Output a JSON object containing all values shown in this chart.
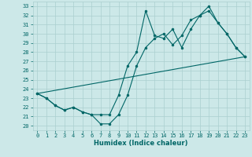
{
  "xlabel": "Humidex (Indice chaleur)",
  "bg_color": "#cce8e8",
  "line_color": "#006666",
  "grid_color": "#aacfcf",
  "xlim": [
    -0.5,
    23.5
  ],
  "ylim": [
    19.5,
    33.5
  ],
  "yticks": [
    20,
    21,
    22,
    23,
    24,
    25,
    26,
    27,
    28,
    29,
    30,
    31,
    32,
    33
  ],
  "xticks": [
    0,
    1,
    2,
    3,
    4,
    5,
    6,
    7,
    8,
    9,
    10,
    11,
    12,
    13,
    14,
    15,
    16,
    17,
    18,
    19,
    20,
    21,
    22,
    23
  ],
  "line1_x": [
    0,
    1,
    2,
    3,
    4,
    5,
    6,
    7,
    8,
    9,
    10,
    11,
    12,
    13,
    14,
    15,
    16,
    17,
    18,
    19,
    20,
    21,
    22,
    23
  ],
  "line1_y": [
    23.5,
    23.0,
    22.2,
    21.7,
    22.0,
    21.5,
    21.2,
    20.2,
    20.2,
    21.2,
    23.3,
    26.5,
    28.5,
    29.5,
    30.0,
    28.8,
    29.8,
    31.5,
    32.0,
    32.5,
    31.2,
    30.0,
    28.5,
    27.5
  ],
  "line2_x": [
    0,
    1,
    2,
    3,
    4,
    5,
    6,
    7,
    8,
    9,
    10,
    11,
    12,
    13,
    14,
    15,
    16,
    17,
    18,
    19,
    20,
    21,
    22,
    23
  ],
  "line2_y": [
    23.5,
    23.0,
    22.2,
    21.7,
    22.0,
    21.5,
    21.2,
    21.2,
    21.2,
    23.3,
    26.5,
    28.0,
    32.5,
    29.8,
    29.5,
    30.5,
    28.5,
    30.5,
    32.0,
    33.0,
    31.2,
    30.0,
    28.5,
    27.5
  ],
  "line3_x": [
    0,
    23
  ],
  "line3_y": [
    23.5,
    27.5
  ],
  "marker_size": 2,
  "line_width": 0.8,
  "tick_fontsize": 5,
  "label_fontsize": 6
}
